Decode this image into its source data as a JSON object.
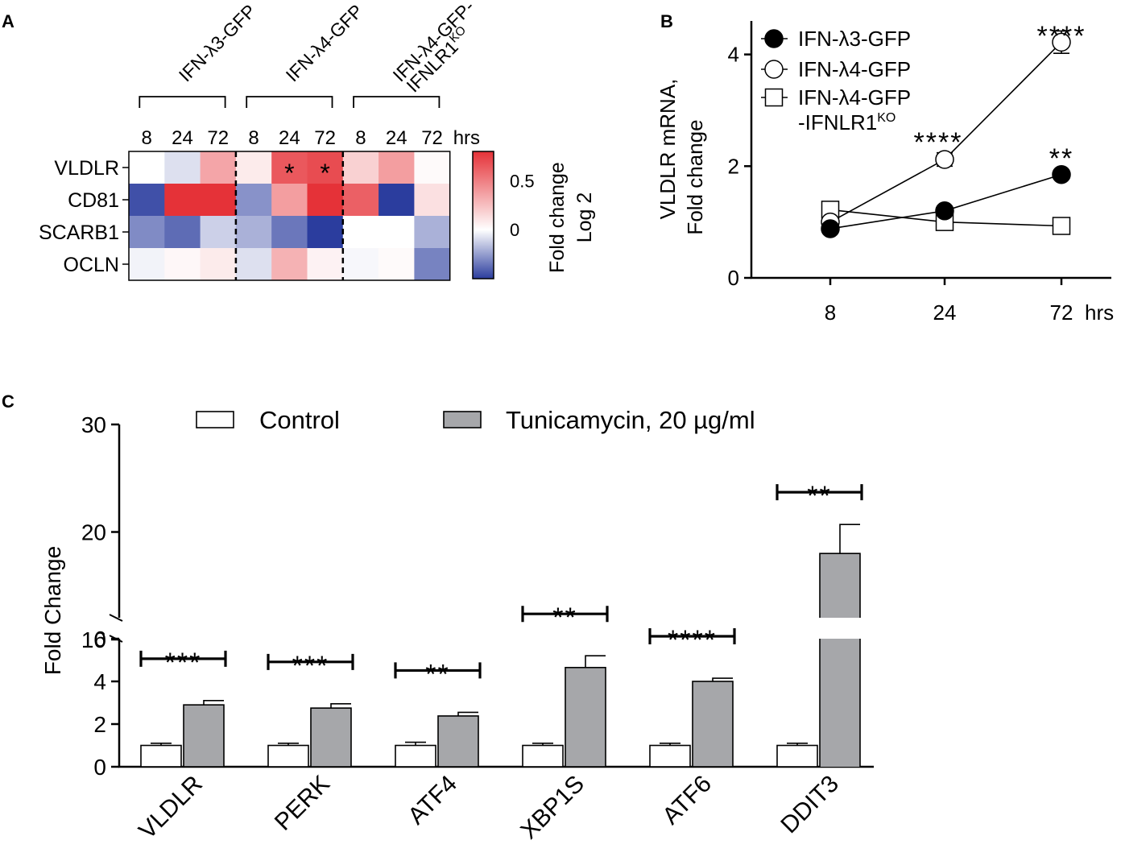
{
  "panels": {
    "a": {
      "letter": "A"
    },
    "b": {
      "letter": "B"
    },
    "c": {
      "letter": "C"
    }
  },
  "chart_data": [
    {
      "type": "heatmap",
      "panel": "A",
      "groups": [
        {
          "label": "IFN-λ3-GFP"
        },
        {
          "label": "IFN-λ4-GFP"
        },
        {
          "label": "IFN-λ4-GFP-",
          "label2": "IFNLR1",
          "label2_sup": "KO"
        }
      ],
      "columns": [
        "8",
        "24",
        "72",
        "8",
        "24",
        "72",
        "8",
        "24",
        "72"
      ],
      "column_unit": "hrs",
      "rows": [
        "VLDLR",
        "CD81",
        "SCARB1",
        "OCLN"
      ],
      "values": [
        [
          0.0,
          -0.08,
          0.35,
          0.08,
          0.65,
          0.7,
          0.18,
          0.38,
          0.02
        ],
        [
          -0.45,
          0.9,
          0.9,
          -0.28,
          0.38,
          0.9,
          0.62,
          -0.75,
          0.12
        ],
        [
          -0.3,
          -0.38,
          -0.12,
          -0.2,
          -0.35,
          -0.62,
          0.0,
          0.0,
          -0.2
        ],
        [
          -0.03,
          0.03,
          0.08,
          -0.08,
          0.3,
          0.05,
          -0.02,
          0.02,
          -0.32
        ]
      ],
      "significance": [
        {
          "row": 0,
          "col": 4,
          "label": "*"
        },
        {
          "row": 0,
          "col": 5,
          "label": "*"
        }
      ],
      "colorbar": {
        "range": [
          -0.5,
          0.8
        ],
        "ticks": [
          {
            "value": 0.5,
            "label": "0.5"
          },
          {
            "value": 0,
            "label": "0"
          }
        ],
        "label_line1": "Fold change",
        "label_line2": "Log 2",
        "low_color": "#2b3d9e",
        "mid_color": "#ffffff",
        "high_color": "#e53238"
      }
    },
    {
      "type": "line",
      "panel": "B",
      "x": [
        8,
        24,
        72
      ],
      "x_tick_labels": [
        "8",
        "24",
        "72"
      ],
      "x_unit": "hrs",
      "ylabel_line1": "VLDLR  mRNA,",
      "ylabel_line2": "Fold change",
      "ylim": [
        0,
        4.6
      ],
      "yticks": [
        0,
        2,
        4
      ],
      "series": [
        {
          "name": "IFN-λ3-GFP",
          "marker": "filled-circle",
          "values": [
            0.88,
            1.2,
            1.85
          ],
          "errors": [
            0.08,
            0.08,
            0.08
          ]
        },
        {
          "name": "IFN-λ4-GFP",
          "marker": "open-circle",
          "values": [
            1.0,
            2.12,
            4.22
          ],
          "errors": [
            0.08,
            0.12,
            0.2
          ]
        },
        {
          "name": "IFN-λ4-GFP",
          "name_line2": "-IFNLR1",
          "name_sup": "KO",
          "marker": "open-square",
          "values": [
            1.22,
            1.0,
            0.93
          ],
          "errors": [
            0.1,
            0.05,
            0.12
          ]
        }
      ],
      "significance": [
        {
          "x_index": 2,
          "label": "****"
        },
        {
          "x_index": 1,
          "label": "****"
        },
        {
          "x_index": 2,
          "label": "**",
          "series": 0
        }
      ]
    },
    {
      "type": "bar",
      "panel": "C",
      "categories": [
        "VLDLR",
        "PERK",
        "ATF4",
        "XBP1S",
        "ATF6",
        "DDIT3"
      ],
      "ylabel": "Fold  Change",
      "y_axis_break": {
        "lower": [
          0,
          6
        ],
        "upper": [
          10,
          30
        ]
      },
      "yticks": [
        0,
        2,
        4,
        6,
        10,
        20,
        30
      ],
      "legend_swatch_colors": {
        "control": "#ffffff",
        "treatment": "#a6a7aa"
      },
      "series": [
        {
          "name": "Control",
          "values": [
            1.0,
            1.0,
            1.0,
            1.0,
            1.0,
            1.0
          ],
          "errors": [
            0.1,
            0.1,
            0.15,
            0.1,
            0.1,
            0.1
          ]
        },
        {
          "name": "Tunicamycin, 20 µg/ml",
          "values": [
            2.9,
            2.75,
            2.38,
            4.65,
            4.0,
            18.0
          ],
          "errors": [
            0.2,
            0.2,
            0.17,
            0.55,
            0.15,
            2.7
          ]
        }
      ],
      "significance": [
        "***",
        "***",
        "**",
        "**",
        "****",
        "**"
      ]
    }
  ]
}
